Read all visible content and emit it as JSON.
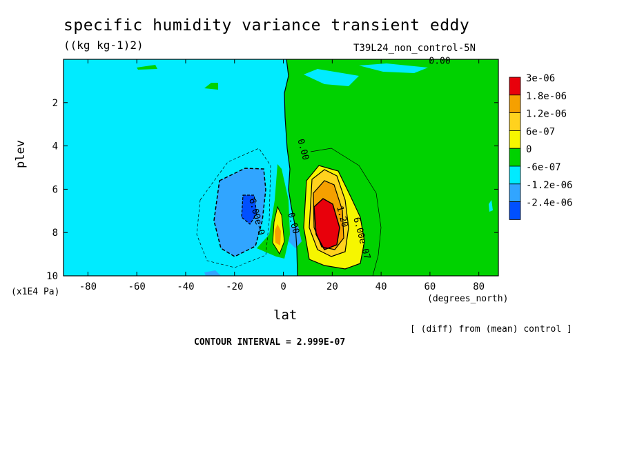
{
  "chart_data": {
    "type": "heatmap",
    "title": "specific humidity variance transient eddy",
    "units": "((kg kg-1)2)",
    "run_name": "T39L24_non_control-5N",
    "xlabel": "lat",
    "xunits": "(degrees_north)",
    "ylabel": "plev",
    "yunits": "(x1E4 Pa)",
    "xlim": [
      -90,
      88
    ],
    "ylim": [
      10,
      0
    ],
    "x_ticks": [
      -80,
      -60,
      -40,
      -20,
      0,
      20,
      40,
      60,
      80
    ],
    "x_tick_labels": [
      "-80",
      "-60",
      "-40",
      "-20",
      "0",
      "20",
      "40",
      "60",
      "80"
    ],
    "y_ticks": [
      2,
      4,
      6,
      8,
      10
    ],
    "y_tick_labels": [
      "2",
      "4",
      "6",
      "8",
      "10"
    ],
    "colorbar": [
      {
        "label": "3e-06",
        "color": "#e8000b"
      },
      {
        "label": "1.8e-06",
        "color": "#f5a000"
      },
      {
        "label": "1.2e-06",
        "color": "#ffd21e"
      },
      {
        "label": "6e-07",
        "color": "#f6f600"
      },
      {
        "label": "0",
        "color": "#00d200"
      },
      {
        "label": "-6e-07",
        "color": "#00ebff"
      },
      {
        "label": "-1.2e-06",
        "color": "#31a5ff"
      },
      {
        "label": "-2.4e-06",
        "color": "#0050ff"
      }
    ],
    "contour_labels": [
      {
        "text": "0.00",
        "lat": 64,
        "plev": 0.2
      },
      {
        "text": "0.00",
        "lat": 7,
        "plev": 4.2
      },
      {
        "text": "6.00e-0",
        "lat": -12,
        "plev": 7.3
      },
      {
        "text": "0.00",
        "lat": 3,
        "plev": 7.6
      },
      {
        "text": "1.20",
        "lat": 23,
        "plev": 7.3
      },
      {
        "text": "6.00e-07",
        "lat": 31,
        "plev": 8.3
      }
    ],
    "diff_note": "[ (diff) from (mean) control ]",
    "contour_interval": "CONTOUR INTERVAL = 2.999E-07"
  }
}
